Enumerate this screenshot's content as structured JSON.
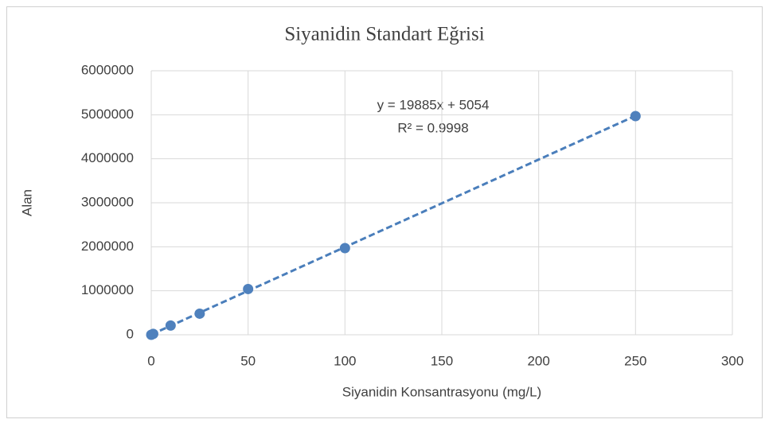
{
  "chart_data": {
    "type": "scatter",
    "title": "Siyanidin Standart Eğrisi",
    "x_label": "Siyanidin Konsantrasyonu (mg/L)",
    "y_label": "Alan",
    "series": [
      {
        "name": "Siyanidin",
        "color": "#4f81bd",
        "x": [
          0,
          1,
          10,
          25,
          50,
          100,
          250
        ],
        "values": [
          0,
          20000,
          210000,
          480000,
          1040000,
          1970000,
          4970000
        ]
      }
    ],
    "trendline": {
      "slope": 19885,
      "intercept": 5054,
      "equation": "y = 19885x + 5054",
      "r_squared": "R² = 0.9998",
      "color": "#4a7ebb"
    },
    "xlim": [
      0,
      300
    ],
    "xticks": [
      0,
      50,
      100,
      150,
      200,
      250,
      300
    ],
    "ylim": [
      0,
      6000000
    ],
    "yticks": [
      0,
      1000000,
      2000000,
      3000000,
      4000000,
      5000000,
      6000000
    ],
    "grid": true
  }
}
